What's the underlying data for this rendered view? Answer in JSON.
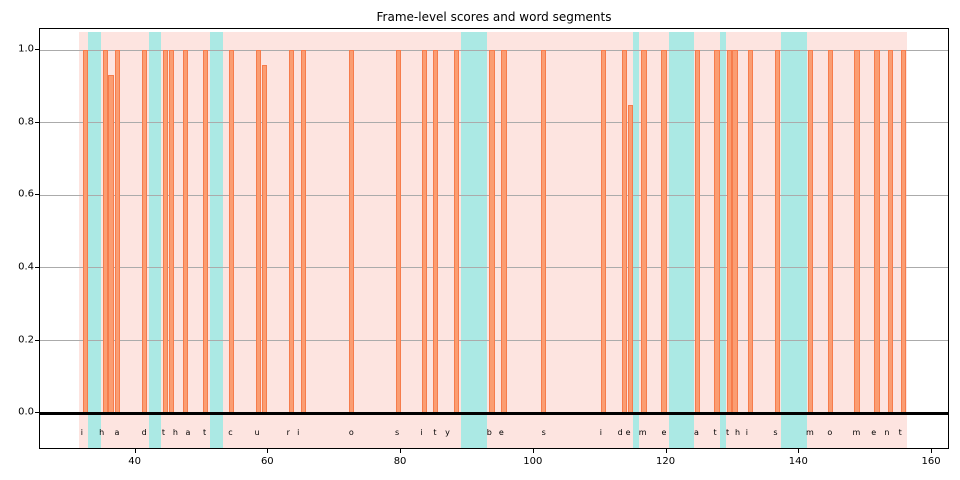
{
  "title": "Frame-level scores and word segments",
  "transcript": "i had that curiosity beside me at this moment",
  "words": [
    "i",
    "had",
    "that",
    "curiosity",
    "beside",
    "me",
    "at",
    "this",
    "moment"
  ],
  "chart_data": {
    "type": "bar",
    "title": "Frame-level scores and word segments",
    "xlabel": "",
    "ylabel": "",
    "xlim": [
      25.6,
      162.4
    ],
    "ylim": [
      -0.096,
      1.058
    ],
    "x_ticks": [
      40,
      60,
      80,
      100,
      120,
      140,
      160
    ],
    "y_ticks": [
      0.0,
      0.2,
      0.4,
      0.6,
      0.8,
      1.0
    ],
    "grid": "horizontal",
    "legend": "none",
    "bar_width": 0.78,
    "bars": [
      {
        "x": 32.4,
        "h": 1.0
      },
      {
        "x": 35.5,
        "h": 1.0
      },
      {
        "x": 36.3,
        "h": 0.93
      },
      {
        "x": 37.3,
        "h": 1.0
      },
      {
        "x": 41.4,
        "h": 1.0
      },
      {
        "x": 44.5,
        "h": 1.0
      },
      {
        "x": 45.4,
        "h": 1.0
      },
      {
        "x": 47.5,
        "h": 1.0
      },
      {
        "x": 50.5,
        "h": 1.0
      },
      {
        "x": 54.5,
        "h": 1.0
      },
      {
        "x": 58.5,
        "h": 1.0
      },
      {
        "x": 59.4,
        "h": 0.96
      },
      {
        "x": 63.5,
        "h": 1.0
      },
      {
        "x": 65.3,
        "h": 1.0
      },
      {
        "x": 72.5,
        "h": 1.0
      },
      {
        "x": 79.6,
        "h": 1.0
      },
      {
        "x": 83.5,
        "h": 1.0
      },
      {
        "x": 85.2,
        "h": 1.0
      },
      {
        "x": 88.3,
        "h": 1.0
      },
      {
        "x": 93.7,
        "h": 1.0
      },
      {
        "x": 95.5,
        "h": 1.0
      },
      {
        "x": 101.5,
        "h": 1.0
      },
      {
        "x": 110.5,
        "h": 1.0
      },
      {
        "x": 113.6,
        "h": 1.0
      },
      {
        "x": 114.6,
        "h": 0.85
      },
      {
        "x": 116.6,
        "h": 1.0
      },
      {
        "x": 119.6,
        "h": 1.0
      },
      {
        "x": 124.6,
        "h": 1.0
      },
      {
        "x": 127.6,
        "h": 1.0
      },
      {
        "x": 129.5,
        "h": 1.0
      },
      {
        "x": 130.3,
        "h": 1.0
      },
      {
        "x": 132.6,
        "h": 1.0
      },
      {
        "x": 136.7,
        "h": 1.0
      },
      {
        "x": 141.7,
        "h": 1.0
      },
      {
        "x": 144.7,
        "h": 1.0
      },
      {
        "x": 148.7,
        "h": 1.0
      },
      {
        "x": 151.7,
        "h": 1.0
      },
      {
        "x": 153.7,
        "h": 1.0
      },
      {
        "x": 155.7,
        "h": 1.0
      }
    ],
    "word_band": {
      "start": 31.5,
      "end": 156.2
    },
    "gap_spans": [
      [
        32.9,
        34.8
      ],
      [
        42.0,
        43.9
      ],
      [
        51.2,
        53.1
      ],
      [
        89.1,
        93.0
      ],
      [
        115.0,
        115.8
      ],
      [
        120.3,
        124.1
      ],
      [
        128.1,
        129.0
      ],
      [
        137.3,
        141.2
      ]
    ],
    "letters": [
      {
        "ch": "i",
        "x": 31.9
      },
      {
        "ch": "h",
        "x": 34.9
      },
      {
        "ch": "a",
        "x": 37.2
      },
      {
        "ch": "d",
        "x": 41.3
      },
      {
        "ch": "t",
        "x": 44.2
      },
      {
        "ch": "h",
        "x": 46.0
      },
      {
        "ch": "a",
        "x": 47.9
      },
      {
        "ch": "t",
        "x": 50.4
      },
      {
        "ch": "c",
        "x": 54.3
      },
      {
        "ch": "u",
        "x": 58.3
      },
      {
        "ch": "r",
        "x": 63.0
      },
      {
        "ch": "i",
        "x": 64.5
      },
      {
        "ch": "o",
        "x": 72.5
      },
      {
        "ch": "s",
        "x": 79.4
      },
      {
        "ch": "i",
        "x": 83.1
      },
      {
        "ch": "t",
        "x": 85.1
      },
      {
        "ch": "y",
        "x": 87.0
      },
      {
        "ch": "b",
        "x": 93.3
      },
      {
        "ch": "e",
        "x": 95.1
      },
      {
        "ch": "s",
        "x": 101.5
      },
      {
        "ch": "i",
        "x": 110.1
      },
      {
        "ch": "d",
        "x": 113.0
      },
      {
        "ch": "e",
        "x": 114.2
      },
      {
        "ch": "m",
        "x": 116.4
      },
      {
        "ch": "e",
        "x": 119.6
      },
      {
        "ch": "a",
        "x": 124.5
      },
      {
        "ch": "t",
        "x": 127.3
      },
      {
        "ch": "t",
        "x": 129.2
      },
      {
        "ch": "h",
        "x": 130.7
      },
      {
        "ch": "i",
        "x": 132.1
      },
      {
        "ch": "s",
        "x": 136.4
      },
      {
        "ch": "m",
        "x": 141.6
      },
      {
        "ch": "o",
        "x": 144.6
      },
      {
        "ch": "m",
        "x": 148.6
      },
      {
        "ch": "e",
        "x": 151.2
      },
      {
        "ch": "n",
        "x": 153.2
      },
      {
        "ch": "t",
        "x": 155.2
      }
    ],
    "letter_y": -0.054,
    "colors": {
      "bar_fill": "#fb9d72",
      "bar_edge": "#f67c4c",
      "word_band": "#fde4e0",
      "gap_band": "#abe9e4",
      "gridline": "#ababab",
      "axis": "#000000",
      "background": "#ffffff"
    }
  }
}
